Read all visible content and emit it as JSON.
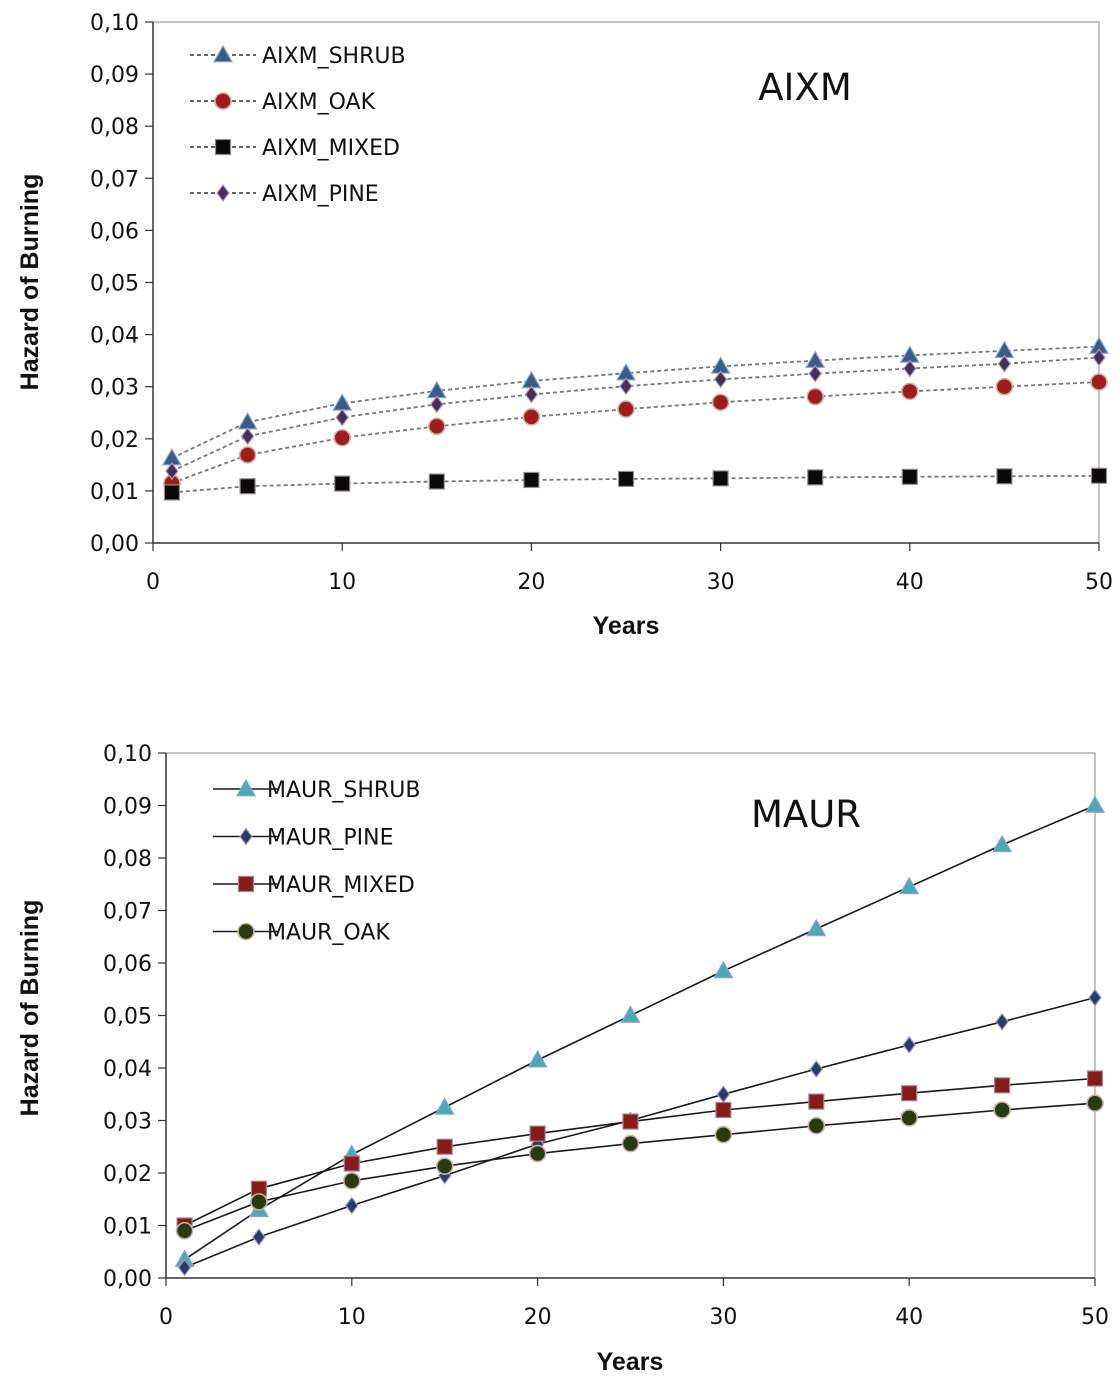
{
  "chart_data": [
    {
      "type": "line",
      "title": "AIXM",
      "xlabel": "Years",
      "ylabel": "Hazard of Burning",
      "xlim": [
        0,
        50
      ],
      "ylim": [
        0,
        0.1
      ],
      "x_ticks": [
        "0",
        "10",
        "20",
        "30",
        "40",
        "50"
      ],
      "y_ticks": [
        "0,00",
        "0,01",
        "0,02",
        "0,03",
        "0,04",
        "0,05",
        "0,06",
        "0,07",
        "0,08",
        "0,09",
        "0,10"
      ],
      "line_style": "dashed",
      "legend_position": "top-left",
      "x": [
        1,
        5,
        10,
        15,
        20,
        25,
        30,
        35,
        40,
        45,
        50
      ],
      "series": [
        {
          "name": "AIXM_SHRUB",
          "marker": "triangle",
          "fill": "#3a5a8a",
          "values": [
            0.0163,
            0.0232,
            0.0268,
            0.0292,
            0.0311,
            0.0326,
            0.0339,
            0.035,
            0.036,
            0.0369,
            0.0377
          ]
        },
        {
          "name": "AIXM_OAK",
          "marker": "circle",
          "fill": "#a01c1c",
          "values": [
            0.0115,
            0.0169,
            0.0202,
            0.0224,
            0.0242,
            0.0257,
            0.027,
            0.0281,
            0.0291,
            0.03,
            0.0309
          ]
        },
        {
          "name": "AIXM_MIXED",
          "marker": "square",
          "fill": "#0a0a0a",
          "values": [
            0.0097,
            0.0109,
            0.0114,
            0.0118,
            0.0121,
            0.0123,
            0.0124,
            0.0126,
            0.0127,
            0.0128,
            0.0129
          ]
        },
        {
          "name": "AIXM_PINE",
          "marker": "diamond",
          "fill": "#4a2e5a",
          "values": [
            0.0138,
            0.0205,
            0.0241,
            0.0266,
            0.0285,
            0.0301,
            0.0314,
            0.0325,
            0.0335,
            0.0344,
            0.0356
          ]
        }
      ]
    },
    {
      "type": "line",
      "title": "MAUR",
      "xlabel": "Years",
      "ylabel": "Hazard of Burning",
      "xlim": [
        0,
        50
      ],
      "ylim": [
        0,
        0.1
      ],
      "x_ticks": [
        "0",
        "10",
        "20",
        "30",
        "40",
        "50"
      ],
      "y_ticks": [
        "0,00",
        "0,01",
        "0,02",
        "0,03",
        "0,04",
        "0,05",
        "0,06",
        "0,07",
        "0,08",
        "0,09",
        "0,10"
      ],
      "line_style": "solid",
      "legend_position": "top-left",
      "x": [
        1,
        5,
        10,
        15,
        20,
        25,
        30,
        35,
        40,
        45,
        50
      ],
      "series": [
        {
          "name": "MAUR_SHRUB",
          "marker": "triangle",
          "fill": "#4aa8b8",
          "values": [
            0.0035,
            0.013,
            0.0235,
            0.0325,
            0.0415,
            0.05,
            0.0585,
            0.0665,
            0.0745,
            0.0825,
            0.09
          ]
        },
        {
          "name": "MAUR_PINE",
          "marker": "diamond",
          "fill": "#2a3a6a",
          "values": [
            0.002,
            0.0078,
            0.0138,
            0.0195,
            0.0255,
            0.03,
            0.035,
            0.0398,
            0.0444,
            0.0488,
            0.0534
          ]
        },
        {
          "name": "MAUR_MIXED",
          "marker": "square",
          "fill": "#8a1a1a",
          "values": [
            0.01,
            0.017,
            0.0218,
            0.025,
            0.0275,
            0.0298,
            0.032,
            0.0336,
            0.0352,
            0.0367,
            0.038
          ]
        },
        {
          "name": "MAUR_OAK",
          "marker": "circle",
          "fill": "#2a3a10",
          "values": [
            0.009,
            0.0145,
            0.0185,
            0.0213,
            0.0237,
            0.0256,
            0.0273,
            0.029,
            0.0305,
            0.032,
            0.0333
          ]
        }
      ]
    }
  ]
}
